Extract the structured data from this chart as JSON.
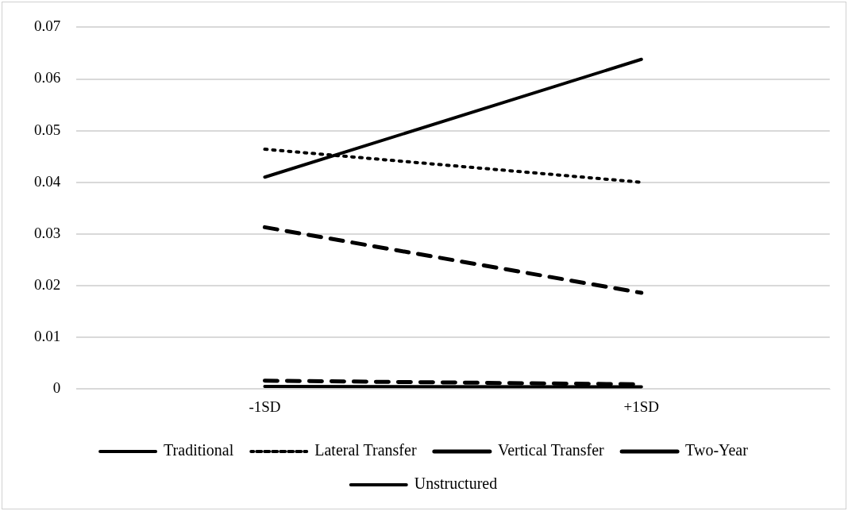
{
  "chart_data": {
    "type": "line",
    "categories": [
      "-1SD",
      "+1SD"
    ],
    "series": [
      {
        "name": "Traditional",
        "color": "#000000",
        "line_style": "solid",
        "values": [
          0.041,
          0.0638
        ]
      },
      {
        "name": "Lateral Transfer",
        "color": "#000000",
        "line_style": "dotted",
        "values": [
          0.0464,
          0.04
        ]
      },
      {
        "name": "Vertical Transfer",
        "color": "#000000",
        "line_style": "dashed",
        "values": [
          0.0313,
          0.0186
        ]
      },
      {
        "name": "Two-Year",
        "color": "#000000",
        "line_style": "dashed",
        "values": [
          0.0016,
          0.0009
        ]
      },
      {
        "name": "Unstructured",
        "color": "#000000",
        "line_style": "solid",
        "values": [
          0.0005,
          0.0004
        ]
      }
    ],
    "ylim": [
      0,
      0.07
    ],
    "yticks": [
      0,
      0.01,
      0.02,
      0.03,
      0.04,
      0.05,
      0.06,
      0.07
    ],
    "grid": "y",
    "legend": "bottom",
    "marker": "none"
  }
}
